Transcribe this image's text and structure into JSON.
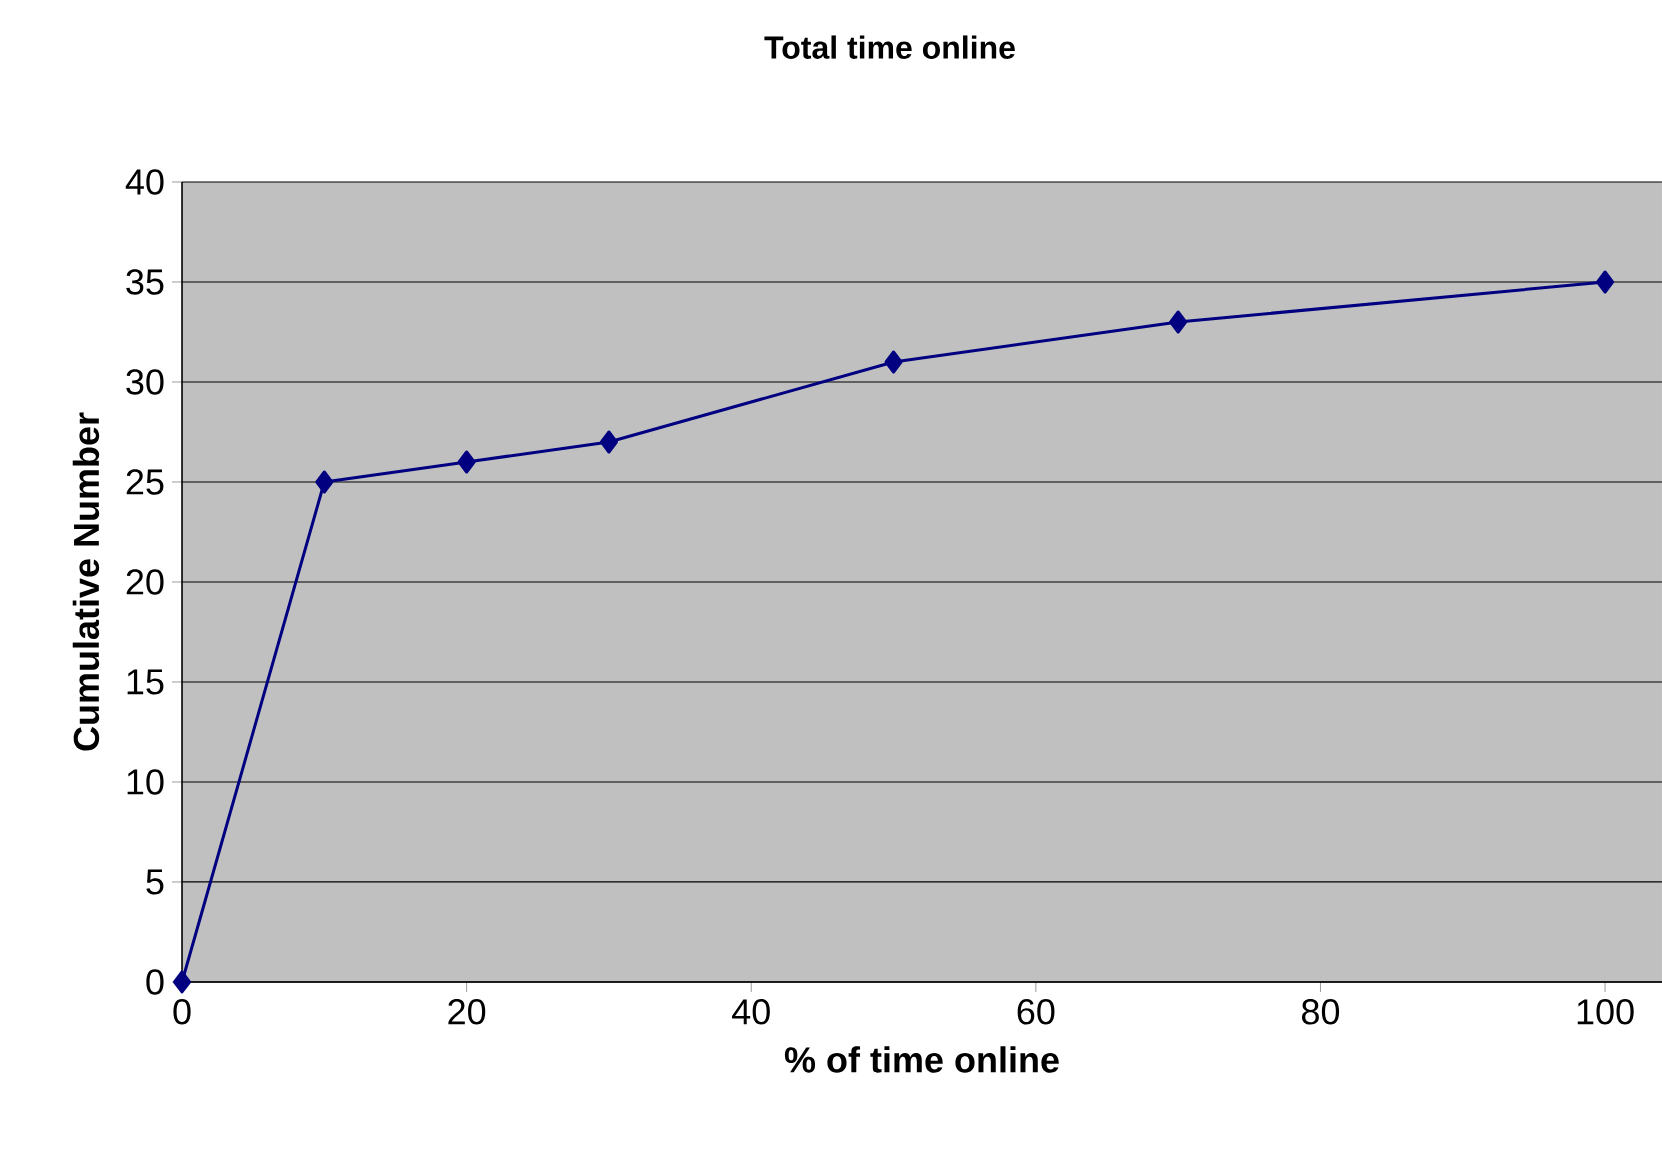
{
  "chart_data": {
    "type": "line",
    "title": "Total time online",
    "xlabel": "% of time online",
    "ylabel": "Cumulative Number",
    "x": [
      0,
      10,
      20,
      30,
      50,
      70,
      100
    ],
    "series": [
      {
        "color": "#000080",
        "values": [
          0,
          25,
          26,
          27,
          31,
          33,
          35
        ]
      }
    ],
    "xlim": [
      0,
      104
    ],
    "xticks": [
      0,
      20,
      40,
      60,
      80,
      100
    ],
    "ylim": [
      0,
      40
    ],
    "yticks": [
      0,
      5,
      10,
      15,
      20,
      25,
      30,
      35,
      40
    ],
    "grid": "y",
    "marker": "diamond",
    "line_style": "solid"
  }
}
